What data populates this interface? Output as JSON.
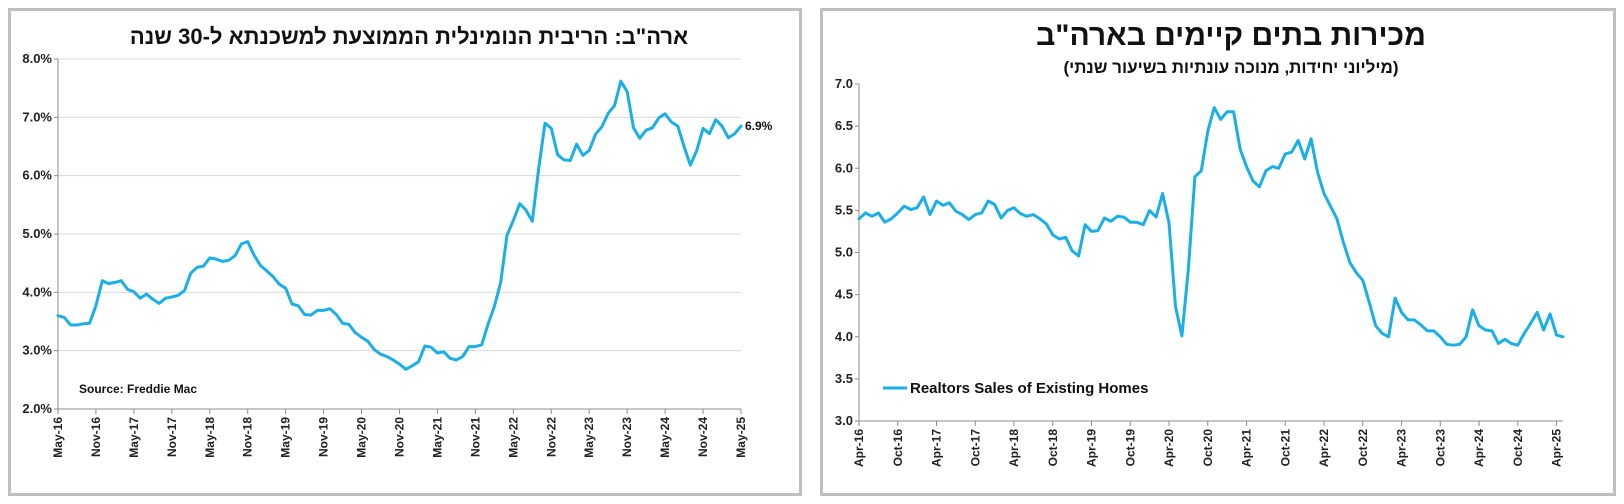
{
  "chart_data": [
    {
      "type": "line",
      "title": "ארה\"ב: הריבית הנומינלית הממוצעת למשכנתא ל-30 שנה",
      "subtitle": "",
      "ylim": [
        2.0,
        8.0
      ],
      "y_ticks": [
        "2.0%",
        "3.0%",
        "4.0%",
        "5.0%",
        "6.0%",
        "7.0%",
        "8.0%"
      ],
      "x_ticks": [
        "May-16",
        "Nov-16",
        "May-17",
        "Nov-17",
        "May-18",
        "Nov-18",
        "May-19",
        "Nov-19",
        "May-20",
        "Nov-20",
        "May-21",
        "Nov-21",
        "May-22",
        "Nov-22",
        "May-23",
        "Nov-23",
        "May-24",
        "Nov-24",
        "May-25"
      ],
      "grid": true,
      "annotation": "Source: Freddie Mac",
      "end_label": "6.9%",
      "series": [
        {
          "name": "",
          "color": "#1aafe6",
          "x_start": "2016-05",
          "frequency": "monthly",
          "values": [
            3.6,
            3.57,
            3.44,
            3.44,
            3.46,
            3.47,
            3.77,
            4.2,
            4.15,
            4.17,
            4.2,
            4.05,
            4.01,
            3.9,
            3.97,
            3.88,
            3.81,
            3.9,
            3.92,
            3.95,
            4.03,
            4.33,
            4.43,
            4.45,
            4.59,
            4.57,
            4.53,
            4.55,
            4.63,
            4.83,
            4.87,
            4.64,
            4.46,
            4.37,
            4.27,
            4.14,
            4.07,
            3.8,
            3.77,
            3.62,
            3.61,
            3.69,
            3.69,
            3.72,
            3.62,
            3.47,
            3.45,
            3.31,
            3.23,
            3.16,
            3.02,
            2.94,
            2.9,
            2.84,
            2.77,
            2.68,
            2.74,
            2.81,
            3.08,
            3.06,
            2.96,
            2.98,
            2.87,
            2.84,
            2.9,
            3.07,
            3.07,
            3.1,
            3.45,
            3.76,
            4.17,
            4.98,
            5.23,
            5.52,
            5.41,
            5.22,
            6.11,
            6.9,
            6.81,
            6.36,
            6.27,
            6.26,
            6.54,
            6.35,
            6.43,
            6.71,
            6.84,
            7.07,
            7.2,
            7.62,
            7.44,
            6.82,
            6.64,
            6.78,
            6.82,
            6.99,
            7.06,
            6.92,
            6.85,
            6.5,
            6.18,
            6.43,
            6.81,
            6.72,
            6.96,
            6.85,
            6.65,
            6.72,
            6.85
          ]
        }
      ]
    },
    {
      "type": "line",
      "title": "מכירות בתים קיימים בארה\"ב",
      "subtitle": "(מיליוני יחידות, מנוכה עונתיות בשיעור שנתי)",
      "ylim": [
        3.0,
        7.0
      ],
      "y_ticks": [
        "3.0",
        "3.5",
        "4.0",
        "4.5",
        "5.0",
        "5.5",
        "6.0",
        "6.5",
        "7.0"
      ],
      "x_ticks": [
        "Apr-16",
        "Oct-16",
        "Apr-17",
        "Oct-17",
        "Apr-18",
        "Oct-18",
        "Apr-19",
        "Oct-19",
        "Apr-20",
        "Oct-20",
        "Apr-21",
        "Oct-21",
        "Apr-22",
        "Oct-22",
        "Apr-23",
        "Oct-23",
        "Apr-24",
        "Oct-24",
        "Apr-25"
      ],
      "grid": false,
      "legend_position": "bottom-left",
      "series": [
        {
          "name": "Realtors Sales of Existing Homes",
          "color": "#1aafe6",
          "x_start": "2016-04",
          "frequency": "monthly",
          "values": [
            5.4,
            5.47,
            5.43,
            5.47,
            5.36,
            5.4,
            5.47,
            5.55,
            5.51,
            5.53,
            5.66,
            5.45,
            5.61,
            5.56,
            5.59,
            5.49,
            5.45,
            5.39,
            5.45,
            5.47,
            5.61,
            5.57,
            5.41,
            5.5,
            5.53,
            5.46,
            5.43,
            5.45,
            5.4,
            5.34,
            5.21,
            5.16,
            5.18,
            5.02,
            4.96,
            5.33,
            5.25,
            5.26,
            5.41,
            5.37,
            5.43,
            5.42,
            5.36,
            5.36,
            5.33,
            5.5,
            5.42,
            5.7,
            5.35,
            4.36,
            4.01,
            4.81,
            5.9,
            5.97,
            6.44,
            6.72,
            6.58,
            6.67,
            6.67,
            6.23,
            6.02,
            5.85,
            5.78,
            5.97,
            6.02,
            6.0,
            6.17,
            6.19,
            6.33,
            6.11,
            6.35,
            5.95,
            5.7,
            5.55,
            5.4,
            5.12,
            4.88,
            4.76,
            4.67,
            4.41,
            4.13,
            4.04,
            4.0,
            4.46,
            4.29,
            4.2,
            4.2,
            4.14,
            4.07,
            4.07,
            4.0,
            3.91,
            3.9,
            3.91,
            4.0,
            4.32,
            4.13,
            4.08,
            4.07,
            3.92,
            3.97,
            3.92,
            3.9,
            4.04,
            4.16,
            4.29,
            4.08,
            4.27,
            4.02,
            4.0
          ]
        }
      ]
    }
  ]
}
